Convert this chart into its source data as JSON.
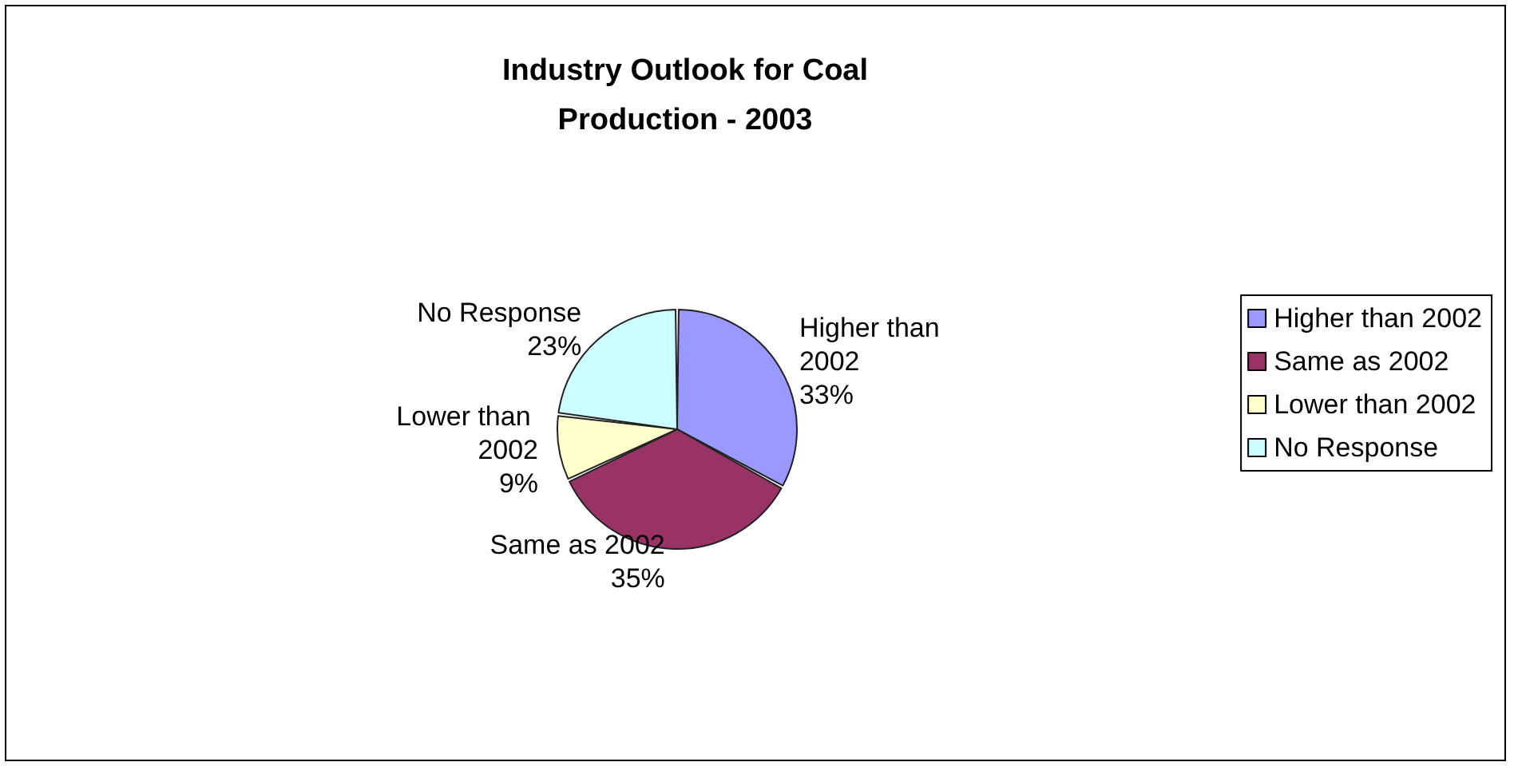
{
  "chart_data": {
    "type": "pie",
    "title": "Industry Outlook for Coal\nProduction - 2003",
    "categories": [
      "Higher than 2002",
      "Same as 2002",
      "Lower than 2002",
      "No Response"
    ],
    "values": [
      33,
      35,
      9,
      23
    ],
    "value_labels": [
      "33%",
      "35%",
      "9%",
      "23%"
    ],
    "colors": [
      "#9999ff",
      "#993366",
      "#ffffcc",
      "#ccffff"
    ],
    "legend": "right"
  }
}
